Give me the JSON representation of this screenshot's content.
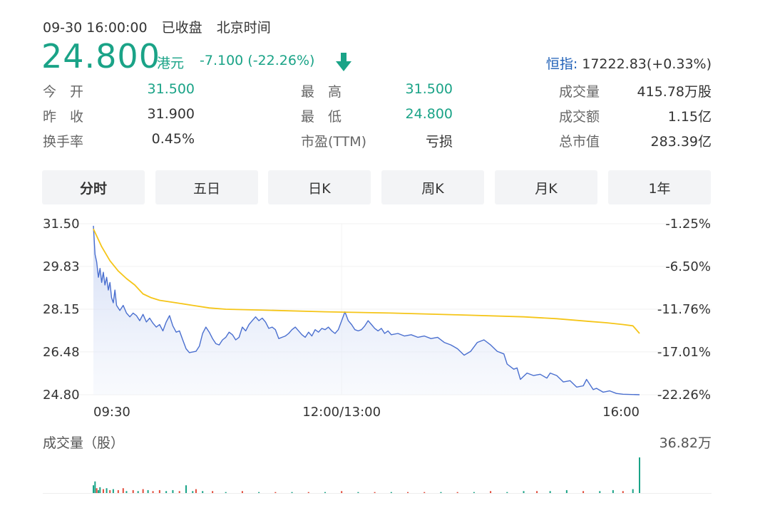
{
  "header": {
    "datetime": "09-30 16:00:00",
    "market_status": "已收盘",
    "timezone": "北京时间"
  },
  "quote": {
    "price": "24.800",
    "currency": "港元",
    "change": "-7.100 (-22.26%)",
    "direction": "down",
    "index_name": "恒指:",
    "index_value": "17222.83(+0.33%)"
  },
  "stats": [
    [
      {
        "label": "今　开",
        "value": "31.500",
        "tone": "green"
      },
      {
        "label": "最　高",
        "value": "31.500",
        "tone": "green"
      },
      {
        "label": "成交量",
        "value": "415.78万股",
        "tone": "dark"
      }
    ],
    [
      {
        "label": "昨　收",
        "value": "31.900",
        "tone": "dark"
      },
      {
        "label": "最　低",
        "value": "24.800",
        "tone": "green"
      },
      {
        "label": "成交额",
        "value": "1.15亿",
        "tone": "dark"
      }
    ],
    [
      {
        "label": "换手率",
        "value": "0.45%",
        "tone": "dark"
      },
      {
        "label": "市盈(TTM)",
        "value": "亏损",
        "tone": "dark"
      },
      {
        "label": "总市值",
        "value": "283.39亿",
        "tone": "dark"
      }
    ]
  ],
  "tabs": [
    "分时",
    "五日",
    "日K",
    "周K",
    "月K",
    "1年"
  ],
  "active_tab": "分时",
  "volume_title": "成交量（股）",
  "colors": {
    "price_line": "#4a6fcf",
    "avg_line": "#f5c518",
    "down": "#1aa387",
    "up": "#e24b3b",
    "index": "#1c5eb6"
  },
  "chart_data": {
    "type": "line",
    "y_ticks": [
      "31.50",
      "29.83",
      "28.15",
      "26.48",
      "24.80"
    ],
    "y_pct_ticks": [
      "-1.25%",
      "-6.50%",
      "-11.76%",
      "-17.01%",
      "-22.26%"
    ],
    "ylim": [
      24.8,
      31.5
    ],
    "x_ticks": [
      "09:30",
      "12:00/13:00",
      "16:00"
    ],
    "xlim": [
      0,
      330
    ],
    "series": [
      {
        "role": "price",
        "points": [
          [
            0,
            31.42
          ],
          [
            1,
            30.3
          ],
          [
            2,
            30.0
          ],
          [
            3,
            29.4
          ],
          [
            4,
            29.75
          ],
          [
            5,
            29.2
          ],
          [
            6,
            29.6
          ],
          [
            7,
            29.1
          ],
          [
            8,
            29.4
          ],
          [
            9,
            28.9
          ],
          [
            10,
            29.2
          ],
          [
            11,
            28.6
          ],
          [
            12,
            28.4
          ],
          [
            13,
            28.9
          ],
          [
            14,
            28.3
          ],
          [
            16,
            28.1
          ],
          [
            18,
            28.3
          ],
          [
            20,
            28.0
          ],
          [
            22,
            27.85
          ],
          [
            24,
            28.0
          ],
          [
            26,
            27.9
          ],
          [
            28,
            27.7
          ],
          [
            30,
            27.95
          ],
          [
            32,
            27.65
          ],
          [
            34,
            27.8
          ],
          [
            36,
            27.6
          ],
          [
            38,
            27.45
          ],
          [
            40,
            27.55
          ],
          [
            42,
            27.3
          ],
          [
            44,
            27.65
          ],
          [
            46,
            27.9
          ],
          [
            48,
            27.5
          ],
          [
            50,
            27.25
          ],
          [
            52,
            27.3
          ],
          [
            54,
            26.95
          ],
          [
            56,
            26.6
          ],
          [
            58,
            26.45
          ],
          [
            62,
            26.5
          ],
          [
            64,
            26.7
          ],
          [
            66,
            27.2
          ],
          [
            68,
            27.45
          ],
          [
            70,
            27.25
          ],
          [
            72,
            27.0
          ],
          [
            74,
            26.8
          ],
          [
            76,
            26.75
          ],
          [
            78,
            26.95
          ],
          [
            80,
            27.05
          ],
          [
            82,
            27.25
          ],
          [
            84,
            27.15
          ],
          [
            86,
            26.95
          ],
          [
            88,
            27.05
          ],
          [
            90,
            27.45
          ],
          [
            92,
            27.3
          ],
          [
            94,
            27.55
          ],
          [
            96,
            27.7
          ],
          [
            98,
            27.85
          ],
          [
            100,
            27.7
          ],
          [
            102,
            27.8
          ],
          [
            104,
            27.65
          ],
          [
            106,
            27.4
          ],
          [
            108,
            27.45
          ],
          [
            110,
            27.35
          ],
          [
            112,
            27.0
          ],
          [
            114,
            27.05
          ],
          [
            116,
            27.1
          ],
          [
            118,
            27.2
          ],
          [
            120,
            27.35
          ],
          [
            122,
            27.45
          ],
          [
            124,
            27.3
          ],
          [
            126,
            27.15
          ],
          [
            128,
            27.05
          ],
          [
            130,
            27.25
          ],
          [
            132,
            27.1
          ],
          [
            134,
            27.35
          ],
          [
            136,
            27.25
          ],
          [
            138,
            27.4
          ],
          [
            140,
            27.35
          ],
          [
            142,
            27.45
          ],
          [
            144,
            27.3
          ],
          [
            146,
            27.2
          ],
          [
            148,
            27.35
          ],
          [
            150,
            27.7
          ],
          [
            152,
            28.05
          ],
          [
            154,
            27.7
          ],
          [
            156,
            27.55
          ],
          [
            158,
            27.35
          ],
          [
            160,
            27.3
          ],
          [
            162,
            27.35
          ],
          [
            164,
            27.5
          ],
          [
            166,
            27.7
          ],
          [
            168,
            27.55
          ],
          [
            170,
            27.4
          ],
          [
            172,
            27.3
          ],
          [
            174,
            27.4
          ],
          [
            176,
            27.2
          ],
          [
            178,
            27.3
          ],
          [
            180,
            27.15
          ],
          [
            184,
            27.2
          ],
          [
            188,
            27.1
          ],
          [
            192,
            27.15
          ],
          [
            196,
            27.05
          ],
          [
            200,
            27.1
          ],
          [
            204,
            27.0
          ],
          [
            208,
            27.05
          ],
          [
            212,
            26.85
          ],
          [
            216,
            26.75
          ],
          [
            220,
            26.6
          ],
          [
            224,
            26.35
          ],
          [
            228,
            26.5
          ],
          [
            232,
            26.85
          ],
          [
            236,
            26.95
          ],
          [
            240,
            26.75
          ],
          [
            244,
            26.5
          ],
          [
            248,
            26.4
          ],
          [
            250,
            26.0
          ],
          [
            254,
            25.8
          ],
          [
            256,
            25.85
          ],
          [
            258,
            25.4
          ],
          [
            262,
            25.65
          ],
          [
            266,
            25.55
          ],
          [
            270,
            25.6
          ],
          [
            274,
            25.45
          ],
          [
            276,
            25.65
          ],
          [
            280,
            25.55
          ],
          [
            284,
            25.3
          ],
          [
            288,
            25.35
          ],
          [
            292,
            25.1
          ],
          [
            296,
            25.15
          ],
          [
            298,
            25.4
          ],
          [
            300,
            25.2
          ],
          [
            302,
            25.0
          ],
          [
            304,
            25.05
          ],
          [
            308,
            24.9
          ],
          [
            312,
            24.95
          ],
          [
            316,
            24.85
          ],
          [
            320,
            24.82
          ],
          [
            330,
            24.8
          ]
        ]
      },
      {
        "role": "average",
        "points": [
          [
            0,
            31.3
          ],
          [
            5,
            30.6
          ],
          [
            10,
            30.05
          ],
          [
            15,
            29.65
          ],
          [
            20,
            29.35
          ],
          [
            25,
            29.1
          ],
          [
            30,
            28.75
          ],
          [
            35,
            28.6
          ],
          [
            40,
            28.5
          ],
          [
            50,
            28.4
          ],
          [
            60,
            28.3
          ],
          [
            70,
            28.2
          ],
          [
            80,
            28.15
          ],
          [
            100,
            28.12
          ],
          [
            140,
            28.05
          ],
          [
            180,
            28.0
          ],
          [
            220,
            27.93
          ],
          [
            260,
            27.85
          ],
          [
            280,
            27.78
          ],
          [
            300,
            27.67
          ],
          [
            310,
            27.62
          ],
          [
            320,
            27.55
          ],
          [
            326,
            27.5
          ],
          [
            330,
            27.2
          ]
        ]
      }
    ]
  },
  "volume": {
    "max_label": "36.82万",
    "max": 36.82,
    "bars": [
      [
        0,
        8,
        "down"
      ],
      [
        1,
        12,
        "down"
      ],
      [
        2,
        5,
        "up"
      ],
      [
        3,
        3,
        "down"
      ],
      [
        4,
        6,
        "down"
      ],
      [
        6,
        4,
        "up"
      ],
      [
        8,
        5,
        "down"
      ],
      [
        10,
        3,
        "up"
      ],
      [
        12,
        4,
        "down"
      ],
      [
        15,
        3,
        "up"
      ],
      [
        18,
        5,
        "up"
      ],
      [
        20,
        2,
        "down"
      ],
      [
        24,
        3,
        "up"
      ],
      [
        27,
        2,
        "down"
      ],
      [
        30,
        4,
        "up"
      ],
      [
        33,
        3,
        "down"
      ],
      [
        36,
        2,
        "up"
      ],
      [
        40,
        3,
        "up"
      ],
      [
        44,
        2,
        "down"
      ],
      [
        48,
        3,
        "down"
      ],
      [
        52,
        2,
        "up"
      ],
      [
        56,
        8,
        "down"
      ],
      [
        60,
        2,
        "down"
      ],
      [
        62,
        4,
        "up"
      ],
      [
        66,
        2,
        "down"
      ],
      [
        72,
        2,
        "up"
      ],
      [
        80,
        1,
        "down"
      ],
      [
        90,
        2,
        "up"
      ],
      [
        100,
        1,
        "down"
      ],
      [
        110,
        1,
        "up"
      ],
      [
        120,
        1,
        "down"
      ],
      [
        130,
        1,
        "up"
      ],
      [
        140,
        1,
        "down"
      ],
      [
        150,
        2,
        "up"
      ],
      [
        160,
        1,
        "down"
      ],
      [
        170,
        1,
        "up"
      ],
      [
        180,
        1,
        "down"
      ],
      [
        190,
        1,
        "up"
      ],
      [
        200,
        1,
        "up"
      ],
      [
        210,
        1,
        "down"
      ],
      [
        220,
        1,
        "up"
      ],
      [
        230,
        1,
        "down"
      ],
      [
        240,
        2,
        "up"
      ],
      [
        250,
        1,
        "down"
      ],
      [
        260,
        2,
        "down"
      ],
      [
        268,
        2,
        "up"
      ],
      [
        276,
        2,
        "down"
      ],
      [
        286,
        3,
        "down"
      ],
      [
        296,
        2,
        "up"
      ],
      [
        306,
        2,
        "down"
      ],
      [
        314,
        3,
        "down"
      ],
      [
        320,
        2,
        "up"
      ],
      [
        326,
        4,
        "down"
      ],
      [
        330,
        36.82,
        "down"
      ]
    ]
  }
}
